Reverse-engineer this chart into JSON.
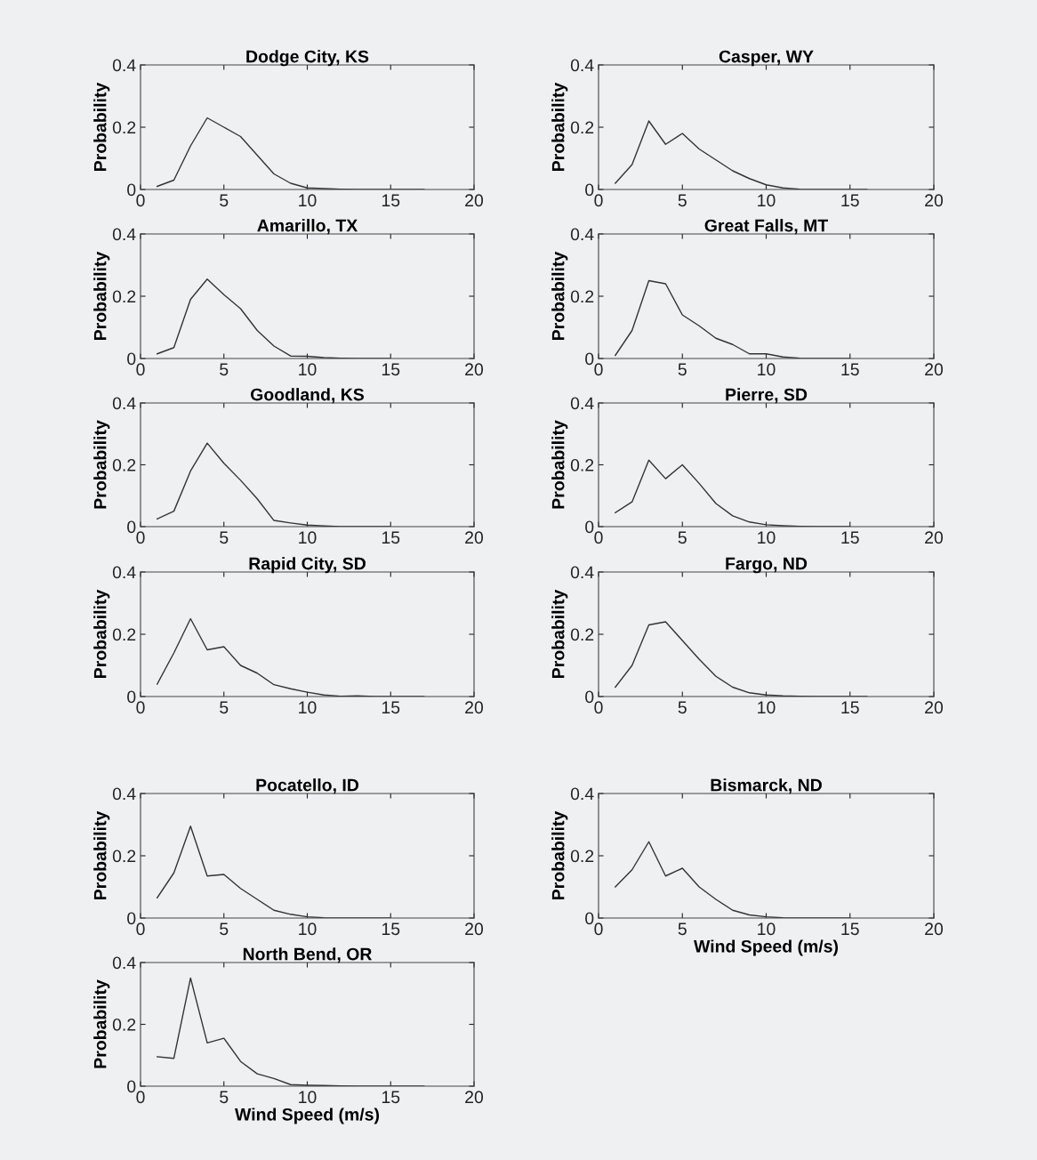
{
  "chart_data": [
    {
      "type": "line",
      "title": "Dodge City, KS",
      "ylabel": "Probability",
      "x": [
        1,
        2,
        3,
        4,
        5,
        6,
        7,
        8,
        9,
        10,
        11,
        12,
        13,
        14,
        15,
        16,
        17
      ],
      "series": [
        {
          "color": "#333333",
          "values": [
            0.01,
            0.03,
            0.14,
            0.23,
            0.2,
            0.17,
            0.11,
            0.05,
            0.02,
            0.005,
            0.003,
            0.001,
            0,
            0,
            0,
            0,
            0
          ]
        }
      ],
      "xlim": [
        0,
        20
      ],
      "xticks": [
        0,
        5,
        10,
        15,
        20
      ],
      "ylim": [
        0,
        0.4
      ],
      "yticks": [
        0,
        0.2,
        0.4
      ],
      "grid": false
    },
    {
      "type": "line",
      "title": "Casper, WY",
      "ylabel": "Probability",
      "x": [
        1,
        2,
        3,
        4,
        5,
        6,
        7,
        8,
        9,
        10,
        11,
        12,
        13,
        14,
        15,
        16
      ],
      "series": [
        {
          "color": "#333333",
          "values": [
            0.02,
            0.08,
            0.22,
            0.145,
            0.18,
            0.13,
            0.095,
            0.06,
            0.035,
            0.015,
            0.005,
            0.001,
            0,
            0,
            0,
            0
          ]
        }
      ],
      "xlim": [
        0,
        20
      ],
      "xticks": [
        0,
        5,
        10,
        15,
        20
      ],
      "ylim": [
        0,
        0.4
      ],
      "yticks": [
        0,
        0.2,
        0.4
      ],
      "grid": false
    },
    {
      "type": "line",
      "title": "Amarillo, TX",
      "ylabel": "Probability",
      "x": [
        1,
        2,
        3,
        4,
        5,
        6,
        7,
        8,
        9,
        10,
        11,
        12,
        13,
        14,
        15
      ],
      "series": [
        {
          "color": "#333333",
          "values": [
            0.015,
            0.035,
            0.19,
            0.255,
            0.205,
            0.16,
            0.09,
            0.04,
            0.008,
            0.007,
            0.003,
            0.001,
            0,
            0,
            0
          ]
        }
      ],
      "xlim": [
        0,
        20
      ],
      "xticks": [
        0,
        5,
        10,
        15,
        20
      ],
      "ylim": [
        0,
        0.4
      ],
      "yticks": [
        0,
        0.2,
        0.4
      ],
      "grid": false
    },
    {
      "type": "line",
      "title": "Great Falls, MT",
      "ylabel": "Probability",
      "x": [
        1,
        2,
        3,
        4,
        5,
        6,
        7,
        8,
        9,
        10,
        11,
        12,
        13,
        14,
        15
      ],
      "series": [
        {
          "color": "#333333",
          "values": [
            0.01,
            0.09,
            0.25,
            0.24,
            0.14,
            0.105,
            0.065,
            0.045,
            0.015,
            0.015,
            0.005,
            0.001,
            0,
            0,
            0
          ]
        }
      ],
      "xlim": [
        0,
        20
      ],
      "xticks": [
        0,
        5,
        10,
        15,
        20
      ],
      "ylim": [
        0,
        0.4
      ],
      "yticks": [
        0,
        0.2,
        0.4
      ],
      "grid": false
    },
    {
      "type": "line",
      "title": "Goodland, KS",
      "ylabel": "Probability",
      "x": [
        1,
        2,
        3,
        4,
        5,
        6,
        7,
        8,
        9,
        10,
        11,
        12,
        13,
        14,
        15
      ],
      "series": [
        {
          "color": "#333333",
          "values": [
            0.025,
            0.05,
            0.18,
            0.27,
            0.205,
            0.15,
            0.09,
            0.02,
            0.012,
            0.005,
            0.002,
            0,
            0,
            0,
            0
          ]
        }
      ],
      "xlim": [
        0,
        20
      ],
      "xticks": [
        0,
        5,
        10,
        15,
        20
      ],
      "ylim": [
        0,
        0.4
      ],
      "yticks": [
        0,
        0.2,
        0.4
      ],
      "grid": false
    },
    {
      "type": "line",
      "title": "Pierre, SD",
      "ylabel": "Probability",
      "x": [
        1,
        2,
        3,
        4,
        5,
        6,
        7,
        8,
        9,
        10,
        11,
        12,
        13,
        14,
        15
      ],
      "series": [
        {
          "color": "#333333",
          "values": [
            0.045,
            0.08,
            0.215,
            0.155,
            0.2,
            0.14,
            0.075,
            0.035,
            0.015,
            0.006,
            0.003,
            0.001,
            0,
            0,
            0
          ]
        }
      ],
      "xlim": [
        0,
        20
      ],
      "xticks": [
        0,
        5,
        10,
        15,
        20
      ],
      "ylim": [
        0,
        0.4
      ],
      "yticks": [
        0,
        0.2,
        0.4
      ],
      "grid": false
    },
    {
      "type": "line",
      "title": "Rapid City, SD",
      "ylabel": "Probability",
      "x": [
        1,
        2,
        3,
        4,
        5,
        6,
        7,
        8,
        9,
        10,
        11,
        12,
        13,
        14,
        15,
        16,
        17
      ],
      "series": [
        {
          "color": "#333333",
          "values": [
            0.04,
            0.14,
            0.25,
            0.15,
            0.16,
            0.1,
            0.075,
            0.038,
            0.025,
            0.014,
            0.005,
            0.001,
            0.002,
            0,
            0,
            0,
            0
          ]
        }
      ],
      "xlim": [
        0,
        20
      ],
      "xticks": [
        0,
        5,
        10,
        15,
        20
      ],
      "ylim": [
        0,
        0.4
      ],
      "yticks": [
        0,
        0.2,
        0.4
      ],
      "grid": false
    },
    {
      "type": "line",
      "title": "Fargo, ND",
      "ylabel": "Probability",
      "x": [
        1,
        2,
        3,
        4,
        5,
        6,
        7,
        8,
        9,
        10,
        11,
        12,
        13,
        14,
        15,
        16
      ],
      "series": [
        {
          "color": "#333333",
          "values": [
            0.03,
            0.1,
            0.23,
            0.24,
            0.18,
            0.12,
            0.065,
            0.03,
            0.012,
            0.005,
            0.002,
            0.001,
            0,
            0,
            0,
            0
          ]
        }
      ],
      "xlim": [
        0,
        20
      ],
      "xticks": [
        0,
        5,
        10,
        15,
        20
      ],
      "ylim": [
        0,
        0.4
      ],
      "yticks": [
        0,
        0.2,
        0.4
      ],
      "grid": false
    },
    {
      "type": "line",
      "title": "Pocatello, ID",
      "ylabel": "Probability",
      "x": [
        1,
        2,
        3,
        4,
        5,
        6,
        7,
        8,
        9,
        10,
        11,
        12,
        13,
        14,
        15
      ],
      "series": [
        {
          "color": "#333333",
          "values": [
            0.065,
            0.145,
            0.295,
            0.135,
            0.14,
            0.095,
            0.06,
            0.025,
            0.012,
            0.004,
            0.001,
            0,
            0,
            0,
            0
          ]
        }
      ],
      "xlim": [
        0,
        20
      ],
      "xticks": [
        0,
        5,
        10,
        15,
        20
      ],
      "ylim": [
        0,
        0.4
      ],
      "yticks": [
        0,
        0.2,
        0.4
      ],
      "grid": false
    },
    {
      "type": "line",
      "title": "Bismarck, ND",
      "ylabel": "Probability",
      "xlabel": "Wind Speed (m/s)",
      "x": [
        1,
        2,
        3,
        4,
        5,
        6,
        7,
        8,
        9,
        10,
        11,
        12,
        13,
        14,
        15
      ],
      "series": [
        {
          "color": "#333333",
          "values": [
            0.1,
            0.155,
            0.245,
            0.135,
            0.16,
            0.1,
            0.06,
            0.025,
            0.01,
            0.004,
            0.001,
            0,
            0,
            0,
            0
          ]
        }
      ],
      "xlim": [
        0,
        20
      ],
      "xticks": [
        0,
        5,
        10,
        15,
        20
      ],
      "ylim": [
        0,
        0.4
      ],
      "yticks": [
        0,
        0.2,
        0.4
      ],
      "grid": false
    },
    {
      "type": "line",
      "title": "North Bend, OR",
      "ylabel": "Probability",
      "xlabel": "Wind Speed (m/s)",
      "x": [
        1,
        2,
        3,
        4,
        5,
        6,
        7,
        8,
        9,
        10,
        11,
        12,
        13,
        14,
        15,
        16,
        17
      ],
      "series": [
        {
          "color": "#333333",
          "values": [
            0.095,
            0.09,
            0.35,
            0.14,
            0.155,
            0.08,
            0.04,
            0.025,
            0.005,
            0.003,
            0.002,
            0.001,
            0,
            0,
            0,
            0,
            0
          ]
        }
      ],
      "xlim": [
        0,
        20
      ],
      "xticks": [
        0,
        5,
        10,
        15,
        20
      ],
      "ylim": [
        0,
        0.4
      ],
      "yticks": [
        0,
        0.2,
        0.4
      ],
      "grid": false
    }
  ]
}
